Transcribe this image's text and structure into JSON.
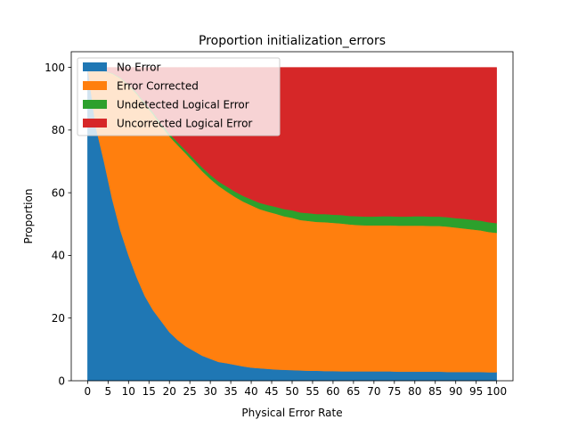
{
  "chart_data": {
    "type": "area",
    "title": "Proportion initialization_errors",
    "xlabel": "Physical Error Rate",
    "ylabel": "Proportion",
    "xlim": [
      -4,
      104
    ],
    "ylim": [
      0,
      105
    ],
    "x": [
      0,
      2,
      4,
      6,
      8,
      10,
      12,
      14,
      16,
      18,
      20,
      22,
      24,
      26,
      28,
      30,
      32,
      34,
      36,
      38,
      40,
      42,
      44,
      46,
      48,
      50,
      52,
      54,
      56,
      58,
      60,
      62,
      64,
      66,
      68,
      70,
      72,
      74,
      76,
      78,
      80,
      82,
      84,
      86,
      88,
      90,
      92,
      94,
      96,
      98,
      100
    ],
    "xticks": [
      0,
      5,
      10,
      15,
      20,
      25,
      30,
      35,
      40,
      45,
      50,
      55,
      60,
      65,
      70,
      75,
      80,
      85,
      90,
      95,
      100
    ],
    "yticks": [
      0,
      20,
      40,
      60,
      80,
      100
    ],
    "legend_position": "top-left",
    "series": [
      {
        "name": "No Error",
        "color": "#1f77b4",
        "values": [
          100,
          81,
          70,
          58,
          48,
          40,
          33,
          27,
          22.5,
          19,
          15.5,
          13,
          11,
          9.5,
          8,
          7,
          6,
          5.6,
          5.1,
          4.6,
          4.2,
          4.0,
          3.8,
          3.6,
          3.5,
          3.4,
          3.3,
          3.2,
          3.2,
          3.1,
          3.1,
          3.0,
          3.0,
          3.0,
          3.0,
          3.0,
          3.0,
          3.0,
          2.9,
          2.9,
          2.9,
          2.9,
          2.9,
          2.9,
          2.8,
          2.8,
          2.8,
          2.8,
          2.8,
          2.7,
          2.7
        ]
      },
      {
        "name": "Error Corrected",
        "color": "#ff7f0e",
        "values": [
          0,
          18.7,
          28.8,
          40,
          48.5,
          54.2,
          58.5,
          61.2,
          62.5,
          62.3,
          62.5,
          62.2,
          61.5,
          60.2,
          58.9,
          57.4,
          56.2,
          54.8,
          53.6,
          52.6,
          51.8,
          50.8,
          50.2,
          49.7,
          49.0,
          48.6,
          48.0,
          47.8,
          47.5,
          47.5,
          47.3,
          47.2,
          46.9,
          46.7,
          46.6,
          46.6,
          46.6,
          46.6,
          46.6,
          46.6,
          46.6,
          46.6,
          46.5,
          46.5,
          46.4,
          46.1,
          45.8,
          45.5,
          45.2,
          44.8,
          44.5
        ]
      },
      {
        "name": "Undetected Logical Error",
        "color": "#2ca02c",
        "values": [
          0,
          0.1,
          0.1,
          0.2,
          0.3,
          0.3,
          0.4,
          0.5,
          0.6,
          0.7,
          0.8,
          0.9,
          1.0,
          1.1,
          1.2,
          1.3,
          1.4,
          1.6,
          1.7,
          1.8,
          1.9,
          2.0,
          2.1,
          2.2,
          2.3,
          2.4,
          2.4,
          2.5,
          2.5,
          2.6,
          2.6,
          2.7,
          2.7,
          2.8,
          2.8,
          2.8,
          2.9,
          2.9,
          2.9,
          2.9,
          3.0,
          3.0,
          3.0,
          3.0,
          3.0,
          3.0,
          3.1,
          3.1,
          3.1,
          3.1,
          3.1
        ]
      },
      {
        "name": "Uncorrected Logical Error",
        "color": "#d62728",
        "values": [
          0,
          0.2,
          1.1,
          1.8,
          3.2,
          5.5,
          8.1,
          11.3,
          14.4,
          18.0,
          21.2,
          23.9,
          26.5,
          29.2,
          31.9,
          34.3,
          36.4,
          38.0,
          39.6,
          41.0,
          42.1,
          43.2,
          43.9,
          44.5,
          45.2,
          45.6,
          46.3,
          46.5,
          46.8,
          46.8,
          47.0,
          47.1,
          47.4,
          47.5,
          47.6,
          47.6,
          47.5,
          47.5,
          47.6,
          47.6,
          47.5,
          47.5,
          47.6,
          47.6,
          47.8,
          48.1,
          48.3,
          48.6,
          48.9,
          49.4,
          49.7
        ]
      }
    ]
  }
}
